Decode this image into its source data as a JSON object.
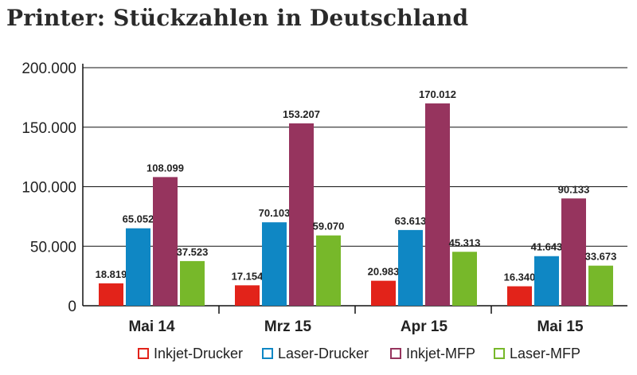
{
  "chart_data": {
    "type": "bar",
    "title": "Printer: Stückzahlen in Deutschland",
    "xlabel": "",
    "ylabel": "",
    "ylim": [
      0,
      200000
    ],
    "y_ticks": [
      0,
      50000,
      100000,
      150000,
      200000
    ],
    "y_tick_labels": [
      "0",
      "50.000",
      "100.000",
      "150.000",
      "200.000"
    ],
    "grid": true,
    "legend_position": "bottom",
    "categories": [
      "Mai 14",
      "Mrz 15",
      "Apr 15",
      "Mai 15"
    ],
    "series": [
      {
        "name": "Inkjet-Drucker",
        "color": "#e2231a",
        "values": [
          18819,
          17154,
          20983,
          16340
        ],
        "labels": [
          "18.819",
          "17.154",
          "20.983",
          "16.340"
        ]
      },
      {
        "name": "Laser-Drucker",
        "color": "#0f87c4",
        "values": [
          65052,
          70103,
          63613,
          41643
        ],
        "labels": [
          "65.052",
          "70.103",
          "63.613",
          "41.643"
        ]
      },
      {
        "name": "Inkjet-MFP",
        "color": "#96345e",
        "values": [
          108099,
          153207,
          170012,
          90133
        ],
        "labels": [
          "108.099",
          "153.207",
          "170.012",
          "90.133"
        ]
      },
      {
        "name": "Laser-MFP",
        "color": "#77b82a",
        "values": [
          37523,
          59070,
          45313,
          33673
        ],
        "labels": [
          "37.523",
          "59.070",
          "45.313",
          "33.673"
        ]
      }
    ]
  }
}
